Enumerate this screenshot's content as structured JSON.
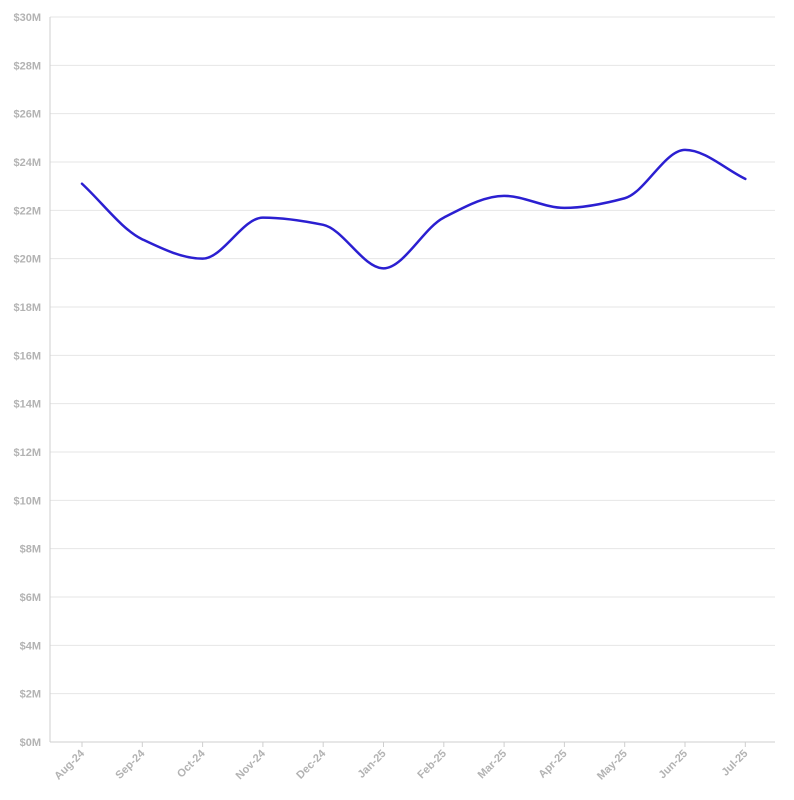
{
  "chart_data": {
    "type": "line",
    "title": "",
    "xlabel": "",
    "ylabel": "",
    "categories": [
      "Aug-24",
      "Sep-24",
      "Oct-24",
      "Nov-24",
      "Dec-24",
      "Jan-25",
      "Feb-25",
      "Mar-25",
      "Apr-25",
      "May-25",
      "Jun-25",
      "Jul-25"
    ],
    "series": [
      {
        "values": [
          23.1,
          20.8,
          20.0,
          21.7,
          21.4,
          19.6,
          21.7,
          22.6,
          22.1,
          22.5,
          24.5,
          23.3
        ]
      }
    ],
    "ylim": [
      0,
      30
    ],
    "yticks": [
      0,
      2,
      4,
      6,
      8,
      10,
      12,
      14,
      16,
      18,
      20,
      22,
      24,
      26,
      28,
      30
    ],
    "ytick_labels": [
      "$0M",
      "$2M",
      "$4M",
      "$6M",
      "$8M",
      "$10M",
      "$12M",
      "$14M",
      "$16M",
      "$18M",
      "$20M",
      "$22M",
      "$24M",
      "$26M",
      "$28M",
      "$30M"
    ],
    "grid": true,
    "legend": "none",
    "colors": {
      "line": "#2b1fd1",
      "grid": "#e6e6e6",
      "tick_text": "#b3b3b3"
    }
  }
}
